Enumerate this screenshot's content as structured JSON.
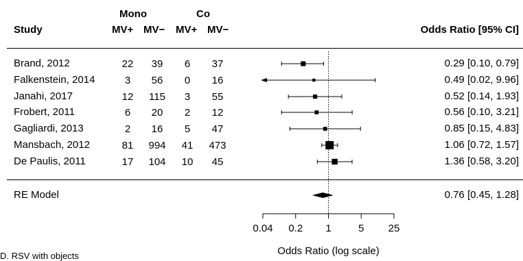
{
  "header": {
    "study_label": "Study",
    "group_mono": "Mono",
    "group_co": "Co",
    "col_mv_pos": "MV+",
    "col_mv_neg": "MV−",
    "or_header": "Odds Ratio [95% CI]"
  },
  "rows": [
    {
      "study": "Brand, 2012",
      "mono_pos": "22",
      "mono_neg": "39",
      "co_pos": "6",
      "co_neg": "37",
      "ci_text": "0.29 [0.10, 0.79]"
    },
    {
      "study": "Falkenstein, 2014",
      "mono_pos": "3",
      "mono_neg": "56",
      "co_pos": "0",
      "co_neg": "16",
      "ci_text": "0.49 [0.02, 9.96]"
    },
    {
      "study": "Janahi, 2017",
      "mono_pos": "12",
      "mono_neg": "115",
      "co_pos": "3",
      "co_neg": "55",
      "ci_text": "0.52 [0.14, 1.93]"
    },
    {
      "study": "Frobert, 2011",
      "mono_pos": "6",
      "mono_neg": "20",
      "co_pos": "2",
      "co_neg": "12",
      "ci_text": "0.56 [0.10, 3.21]"
    },
    {
      "study": "Gagliardi, 2013",
      "mono_pos": "2",
      "mono_neg": "16",
      "co_pos": "5",
      "co_neg": "47",
      "ci_text": "0.85 [0.15, 4.83]"
    },
    {
      "study": "Mansbach, 2012",
      "mono_pos": "81",
      "mono_neg": "994",
      "co_pos": "41",
      "co_neg": "473",
      "ci_text": "1.06 [0.72, 1.57]"
    },
    {
      "study": "De Paulis, 2011",
      "mono_pos": "17",
      "mono_neg": "104",
      "co_pos": "10",
      "co_neg": "45",
      "ci_text": "1.36 [0.58, 3.20]"
    }
  ],
  "model": {
    "label": "RE Model",
    "ci_text": "0.76 [0.45, 1.28]"
  },
  "footer_fragment": "D. RSV with objects",
  "chart_data": {
    "type": "forest",
    "xlabel": "Odds Ratio (log scale)",
    "x_scale": "log",
    "xlim": [
      0.04,
      25
    ],
    "x_ticks": [
      0.04,
      0.2,
      1,
      5,
      25
    ],
    "x_tick_labels": [
      "0.04",
      "0.2",
      "1",
      "5",
      "25"
    ],
    "reference_line": 1,
    "studies": [
      {
        "name": "Brand, 2012",
        "or": 0.29,
        "lo": 0.1,
        "hi": 0.79,
        "weight": 0.45
      },
      {
        "name": "Falkenstein, 2014",
        "or": 0.49,
        "lo": 0.02,
        "hi": 9.96,
        "weight": 0.15,
        "lo_clipped": true
      },
      {
        "name": "Janahi, 2017",
        "or": 0.52,
        "lo": 0.14,
        "hi": 1.93,
        "weight": 0.35
      },
      {
        "name": "Frobert, 2011",
        "or": 0.56,
        "lo": 0.1,
        "hi": 3.21,
        "weight": 0.3
      },
      {
        "name": "Gagliardi, 2013",
        "or": 0.85,
        "lo": 0.15,
        "hi": 4.83,
        "weight": 0.3
      },
      {
        "name": "Mansbach, 2012",
        "or": 1.06,
        "lo": 0.72,
        "hi": 1.57,
        "weight": 1.0
      },
      {
        "name": "De Paulis, 2011",
        "or": 1.36,
        "lo": 0.58,
        "hi": 3.2,
        "weight": 0.6
      }
    ],
    "summary": {
      "name": "RE Model",
      "or": 0.76,
      "lo": 0.45,
      "hi": 1.28
    }
  }
}
